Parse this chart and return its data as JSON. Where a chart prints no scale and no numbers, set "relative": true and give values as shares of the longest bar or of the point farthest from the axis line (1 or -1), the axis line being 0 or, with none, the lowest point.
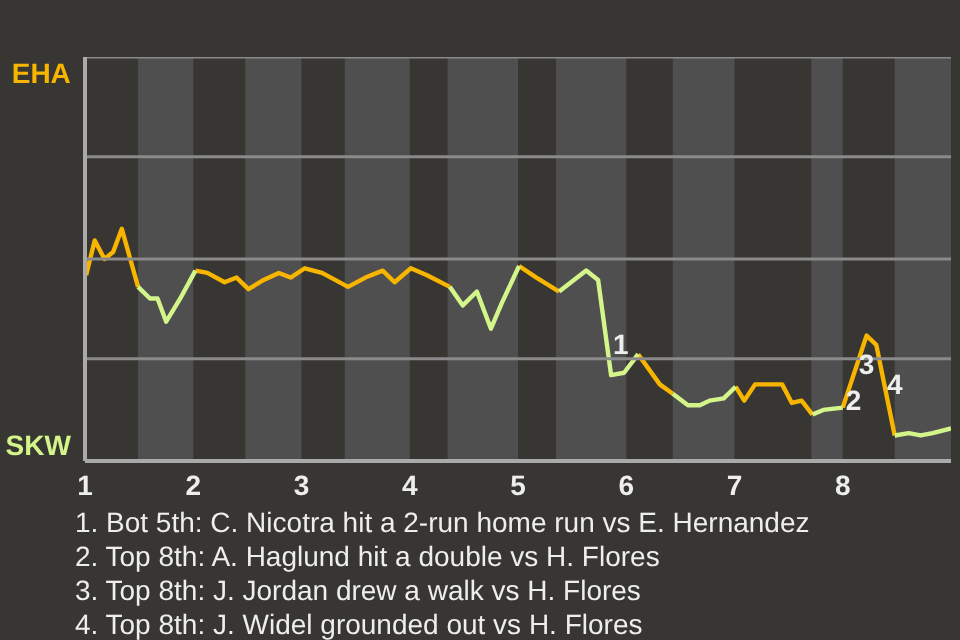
{
  "chart_data": {
    "type": "line",
    "relative": true,
    "legend": "left",
    "ref_lines": [
      {
        "axis": "y",
        "value": 0.44,
        "color": "#8a8a8a"
      },
      {
        "axis": "y",
        "value": 0.87,
        "color": "#8a8a8a"
      },
      {
        "axis": "y",
        "value": 1.31,
        "color": "#8a8a8a"
      },
      {
        "axis": "y",
        "value": 1.74,
        "color": "#8a8a8a"
      }
    ],
    "xlim": [
      1,
      9
    ],
    "xticks": [
      1,
      2,
      3,
      4,
      5,
      6,
      7,
      8
    ],
    "x": [
      1.01,
      1.09,
      1.18,
      1.26,
      1.34,
      1.49,
      1.6,
      1.67,
      1.75,
      1.88,
      2.02,
      2.13,
      2.29,
      2.4,
      2.51,
      2.65,
      2.79,
      2.9,
      3.03,
      3.19,
      3.43,
      3.59,
      3.75,
      3.86,
      4.01,
      4.16,
      4.37,
      4.49,
      4.62,
      4.75,
      4.85,
      5.01,
      5.17,
      5.38,
      5.63,
      5.74,
      5.86,
      5.98,
      6.11,
      6.31,
      6.43,
      6.57,
      6.68,
      6.77,
      6.9,
      7.01,
      7.09,
      7.19,
      7.44,
      7.53,
      7.62,
      7.72,
      7.82,
      8.0,
      8.22,
      8.31,
      8.48,
      8.61,
      8.72,
      8.83,
      9.0
    ],
    "series": [
      {
        "name": "EHA",
        "color": "#f7b500",
        "values": [
          0.8,
          0.95,
          0.87,
          0.9,
          1.0,
          0.75,
          null,
          null,
          null,
          null,
          0.82,
          0.81,
          0.77,
          0.79,
          0.74,
          0.78,
          0.81,
          0.79,
          0.83,
          0.81,
          0.75,
          0.79,
          0.82,
          0.77,
          0.83,
          0.8,
          0.75,
          null,
          null,
          null,
          null,
          0.84,
          0.79,
          0.73,
          null,
          null,
          null,
          null,
          0.46,
          0.33,
          0.29,
          null,
          null,
          null,
          null,
          0.32,
          0.26,
          0.33,
          0.33,
          0.25,
          0.26,
          0.2,
          null,
          0.23,
          0.54,
          0.5,
          0.11,
          null,
          null,
          null,
          null
        ]
      },
      {
        "name": "SKW",
        "color": "#d4f58a",
        "values": [
          null,
          null,
          null,
          null,
          null,
          0.75,
          0.7,
          0.7,
          0.6,
          0.7,
          0.82,
          null,
          null,
          null,
          null,
          null,
          null,
          null,
          null,
          null,
          null,
          null,
          null,
          null,
          null,
          null,
          0.75,
          0.67,
          0.73,
          0.57,
          0.68,
          0.84,
          null,
          0.73,
          0.82,
          0.78,
          0.37,
          0.38,
          0.46,
          null,
          0.29,
          0.24,
          0.24,
          0.26,
          0.27,
          0.32,
          null,
          null,
          null,
          null,
          null,
          0.2,
          0.22,
          0.23,
          null,
          null,
          0.11,
          0.12,
          0.11,
          0.12,
          0.14
        ]
      }
    ],
    "bands": [
      {
        "axis": "x",
        "from": 1.49,
        "to": 2,
        "color": "#4f4f4f"
      },
      {
        "axis": "x",
        "from": 2.48,
        "to": 3,
        "color": "#4f4f4f"
      },
      {
        "axis": "x",
        "from": 3.4,
        "to": 4,
        "color": "#4f4f4f"
      },
      {
        "axis": "x",
        "from": 4.35,
        "to": 5,
        "color": "#4f4f4f"
      },
      {
        "axis": "x",
        "from": 5.35,
        "to": 6,
        "color": "#4f4f4f"
      },
      {
        "axis": "x",
        "from": 6.43,
        "to": 7,
        "color": "#4f4f4f"
      },
      {
        "axis": "x",
        "from": 7.71,
        "to": 8,
        "color": "#4f4f4f"
      },
      {
        "axis": "x",
        "from": 8.48,
        "to": 9,
        "color": "#4f4f4f"
      }
    ],
    "annotations": [
      {
        "text": "1",
        "x": 5.95,
        "y": 0.505
      },
      {
        "text": "2",
        "x": 8.1,
        "y": 0.263
      },
      {
        "text": "3",
        "x": 8.22,
        "y": 0.418
      },
      {
        "text": "4",
        "x": 8.48,
        "y": 0.333
      },
      "1. Bot 5th: C. Nicotra hit a 2-run home run vs E. Hernandez",
      "2. Top 8th: A. Haglund hit a double vs H. Flores",
      "3. Top 8th: J. Jordan drew a walk vs H. Flores",
      "4. Top 8th: J. Widel grounded out vs H. Flores"
    ]
  }
}
